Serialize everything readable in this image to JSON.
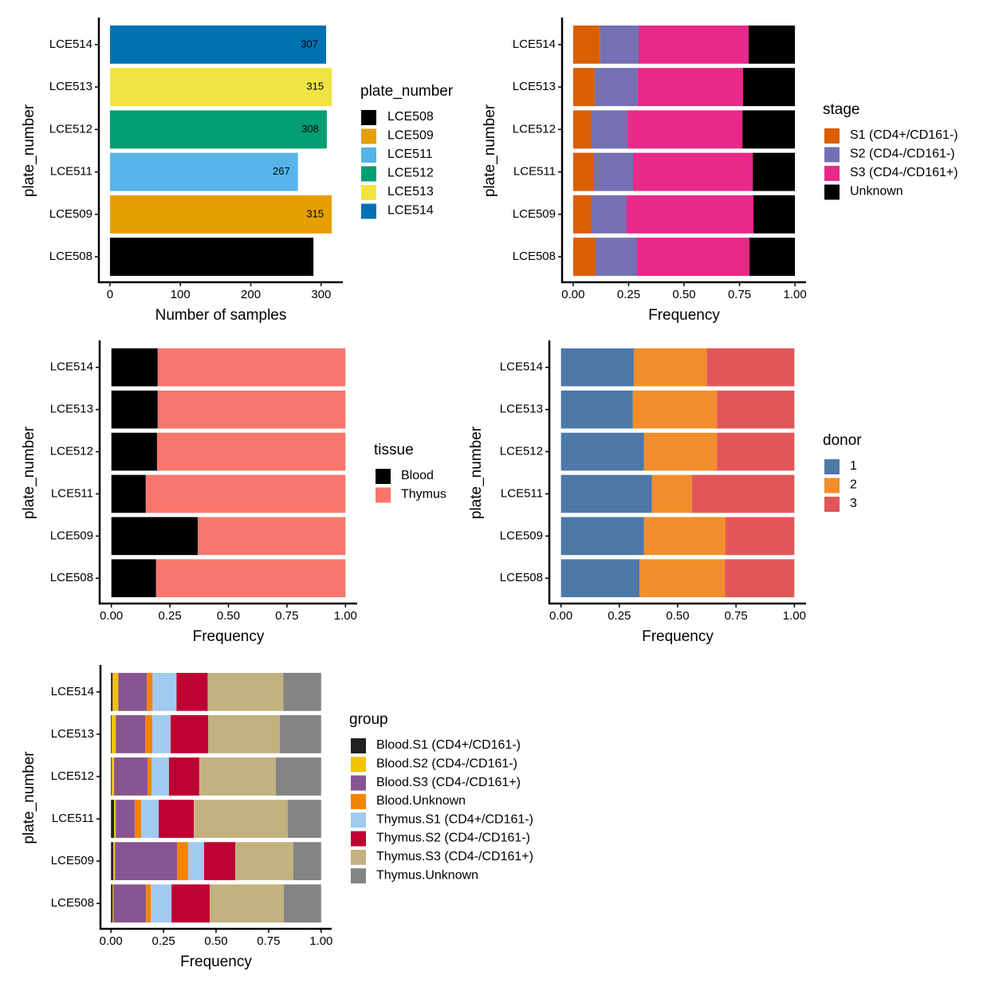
{
  "chart_data": [
    {
      "type": "bar",
      "categories": [
        "LCE508",
        "LCE509",
        "LCE511",
        "LCE512",
        "LCE513",
        "LCE514"
      ],
      "values": [
        289,
        315,
        267,
        308,
        315,
        307
      ],
      "colors": [
        "#000000",
        "#E69F00",
        "#56B4E9",
        "#009E73",
        "#F0E442",
        "#0072B2"
      ],
      "x_label": "Number of samples",
      "y_label": "plate_number",
      "legend_title": "plate_number",
      "xlim": [
        -15.75,
        330.75
      ],
      "xticks": [
        0,
        100,
        200,
        300
      ]
    },
    {
      "type": "stacked_bar",
      "categories": [
        "LCE508",
        "LCE509",
        "LCE511",
        "LCE512",
        "LCE513",
        "LCE514"
      ],
      "x_label": "Frequency",
      "y_label": "plate_number",
      "legend_title": "stage",
      "xlim": [
        -0.05,
        1.05
      ],
      "xticks": [
        {
          "value": 0,
          "label": "0.00"
        },
        {
          "value": 0.25,
          "label": "0.25"
        },
        {
          "value": 0.5,
          "label": "0.50"
        },
        {
          "value": 0.75,
          "label": "0.75"
        },
        {
          "value": 1,
          "label": "1.00"
        }
      ],
      "series": [
        {
          "name": "S1 (CD4+/CD161-)",
          "color": "#D95F02",
          "values": [
            0.101,
            0.083,
            0.094,
            0.083,
            0.097,
            0.122
          ]
        },
        {
          "name": "S2 (CD4-/CD161-)",
          "color": "#7570B3",
          "values": [
            0.187,
            0.158,
            0.176,
            0.162,
            0.194,
            0.173
          ]
        },
        {
          "name": "S3 (CD4-/CD161+)",
          "color": "#E7298A",
          "values": [
            0.507,
            0.572,
            0.54,
            0.518,
            0.475,
            0.496
          ]
        },
        {
          "name": "Unknown",
          "color": "#000000",
          "values": [
            0.205,
            0.187,
            0.19,
            0.237,
            0.234,
            0.209
          ]
        }
      ]
    },
    {
      "type": "stacked_bar",
      "categories": [
        "LCE508",
        "LCE509",
        "LCE511",
        "LCE512",
        "LCE513",
        "LCE514"
      ],
      "x_label": "Frequency",
      "y_label": "plate_number",
      "legend_title": "tissue",
      "xlim": [
        -0.05,
        1.05
      ],
      "xticks": [
        {
          "value": 0,
          "label": "0.00"
        },
        {
          "value": 0.25,
          "label": "0.25"
        },
        {
          "value": 0.5,
          "label": "0.50"
        },
        {
          "value": 0.75,
          "label": "0.75"
        },
        {
          "value": 1,
          "label": "1.00"
        }
      ],
      "series": [
        {
          "name": "Blood",
          "color": "#000000",
          "values": [
            0.191,
            0.369,
            0.147,
            0.195,
            0.198,
            0.198
          ]
        },
        {
          "name": "Thymus",
          "color": "#F8766D",
          "values": [
            0.809,
            0.631,
            0.853,
            0.805,
            0.802,
            0.802
          ]
        }
      ]
    },
    {
      "type": "stacked_bar",
      "categories": [
        "LCE508",
        "LCE509",
        "LCE511",
        "LCE512",
        "LCE513",
        "LCE514"
      ],
      "x_label": "Frequency",
      "y_label": "plate_number",
      "legend_title": "donor",
      "xlim": [
        -0.05,
        1.05
      ],
      "xticks": [
        {
          "value": 0,
          "label": "0.00"
        },
        {
          "value": 0.25,
          "label": "0.25"
        },
        {
          "value": 0.5,
          "label": "0.50"
        },
        {
          "value": 0.75,
          "label": "0.75"
        },
        {
          "value": 1,
          "label": "1.00"
        }
      ],
      "series": [
        {
          "name": "1",
          "color": "#4E79A7",
          "values": [
            0.336,
            0.356,
            0.39,
            0.356,
            0.308,
            0.312
          ]
        },
        {
          "name": "2",
          "color": "#F28E2B",
          "values": [
            0.366,
            0.349,
            0.171,
            0.312,
            0.36,
            0.312
          ]
        },
        {
          "name": "3",
          "color": "#E15759",
          "values": [
            0.298,
            0.295,
            0.439,
            0.332,
            0.332,
            0.376
          ]
        }
      ]
    },
    {
      "type": "stacked_bar",
      "categories": [
        "LCE508",
        "LCE509",
        "LCE511",
        "LCE512",
        "LCE513",
        "LCE514"
      ],
      "x_label": "Frequency",
      "y_label": "plate_number",
      "legend_title": "group",
      "xlim": [
        -0.05,
        1.05
      ],
      "xticks": [
        {
          "value": 0,
          "label": "0.00"
        },
        {
          "value": 0.25,
          "label": "0.25"
        },
        {
          "value": 0.5,
          "label": "0.50"
        },
        {
          "value": 0.75,
          "label": "0.75"
        },
        {
          "value": 1,
          "label": "1.00"
        }
      ],
      "series": [
        {
          "name": "Blood.S1 (CD4+/CD161-)",
          "color": "#222222",
          "values": [
            0.008,
            0.011,
            0.015,
            0.004,
            0.004,
            0.008
          ]
        },
        {
          "name": "Blood.S2 (CD4-/CD161-)",
          "color": "#F3C300",
          "values": [
            0.004,
            0.008,
            0.008,
            0.011,
            0.019,
            0.027
          ]
        },
        {
          "name": "Blood.S3 (CD4-/CD161+)",
          "color": "#875692",
          "values": [
            0.155,
            0.295,
            0.091,
            0.159,
            0.14,
            0.136
          ]
        },
        {
          "name": "Blood.Unknown",
          "color": "#F38400",
          "values": [
            0.023,
            0.053,
            0.03,
            0.019,
            0.034,
            0.027
          ]
        },
        {
          "name": "Thymus.S1 (CD4+/CD161-)",
          "color": "#A1CAF1",
          "values": [
            0.098,
            0.076,
            0.083,
            0.083,
            0.087,
            0.114
          ]
        },
        {
          "name": "Thymus.S2 (CD4-/CD161-)",
          "color": "#BE0032",
          "values": [
            0.182,
            0.148,
            0.167,
            0.144,
            0.178,
            0.148
          ]
        },
        {
          "name": "Thymus.S3 (CD4-/CD161+)",
          "color": "#C2B280",
          "values": [
            0.352,
            0.277,
            0.447,
            0.364,
            0.341,
            0.36
          ]
        },
        {
          "name": "Thymus.Unknown",
          "color": "#848482",
          "values": [
            0.178,
            0.132,
            0.159,
            0.216,
            0.197,
            0.18
          ]
        }
      ]
    }
  ]
}
